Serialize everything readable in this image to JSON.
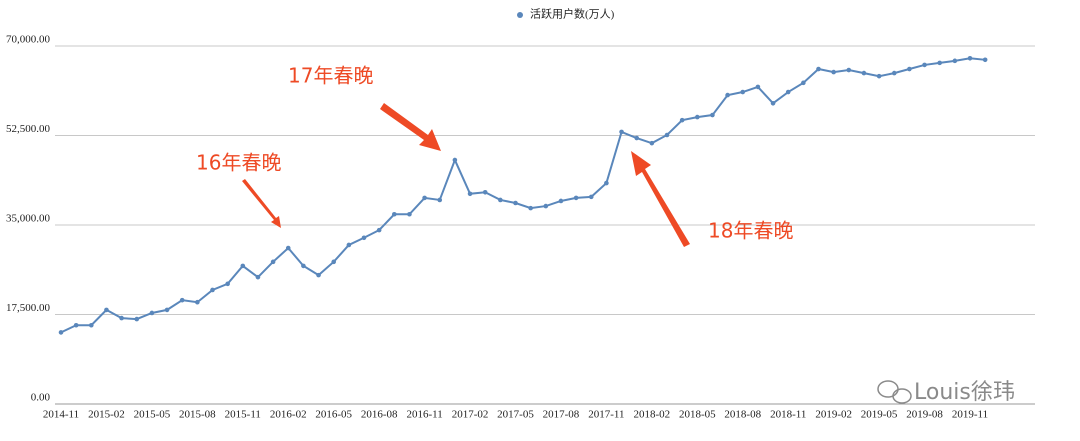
{
  "chart_data": {
    "type": "line",
    "legend": "top",
    "categories": [
      "2014-11",
      null,
      null,
      "2015-02",
      null,
      null,
      "2015-05",
      null,
      null,
      "2015-08",
      null,
      null,
      "2015-11",
      null,
      null,
      "2016-02",
      null,
      null,
      "2016-05",
      null,
      null,
      "2016-08",
      null,
      null,
      "2016-11",
      null,
      null,
      "2017-02",
      null,
      null,
      "2017-05",
      null,
      null,
      "2017-08",
      null,
      null,
      "2017-11",
      null,
      null,
      "2018-02",
      null,
      null,
      "2018-05",
      null,
      null,
      "2018-08",
      null,
      null,
      "2018-11",
      null,
      null,
      "2019-02",
      null,
      null,
      "2019-05",
      null,
      null,
      "2019-08",
      null,
      null,
      "2019-11",
      null
    ],
    "series": [
      {
        "name": "活跃用户数(万人)",
        "color": "#5a87bb",
        "values": [
          14000,
          15400,
          15400,
          18400,
          16800,
          16600,
          17800,
          18400,
          20300,
          19900,
          22300,
          23500,
          27000,
          24800,
          27800,
          30500,
          27000,
          25200,
          27800,
          31100,
          32500,
          34000,
          37100,
          37100,
          40300,
          39900,
          47700,
          41100,
          41400,
          39900,
          39300,
          38300,
          38700,
          39700,
          40300,
          40500,
          43200,
          53200,
          52000,
          51000,
          52600,
          55500,
          56100,
          56500,
          60400,
          61000,
          62000,
          58800,
          61000,
          62800,
          65500,
          64900,
          65300,
          64700,
          64100,
          64700,
          65500,
          66300,
          66700,
          67100,
          67600,
          67300
        ]
      }
    ],
    "ylim": [
      0,
      70000
    ],
    "yticks": [
      {
        "value": 0,
        "label": "0.00"
      },
      {
        "value": 17500,
        "label": "17,500.00"
      },
      {
        "value": 35000,
        "label": "35,000.00"
      },
      {
        "value": 52500,
        "label": "52,500.00"
      },
      {
        "value": 70000,
        "label": "70,000.00"
      }
    ],
    "grid": true,
    "annotations": [
      "16年春晚",
      "17年春晚",
      "18年春晚"
    ],
    "watermark": "Louis徐玮"
  }
}
